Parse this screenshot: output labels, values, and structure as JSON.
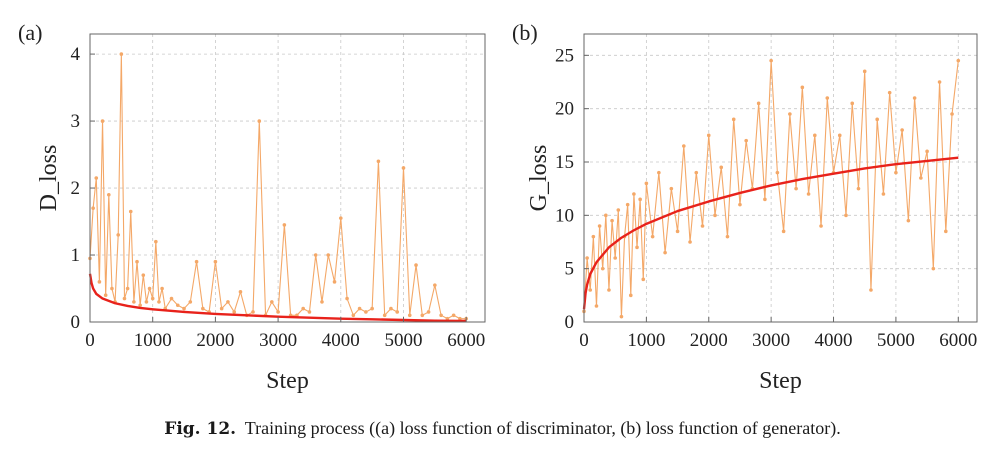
{
  "caption": {
    "label": "Fig. 12.",
    "text": "Training process ((a) loss function of discriminator, (b) loss function of generator)."
  },
  "colors": {
    "raw": "#f4a868",
    "trend": "#e8221b",
    "grid": "#c8c8c8",
    "axis": "#666666"
  },
  "chart_data": [
    {
      "type": "line",
      "panel_label": "(a)",
      "xlabel": "Step",
      "ylabel": "D_loss",
      "xlim": [
        0,
        6300
      ],
      "ylim": [
        0,
        4.3
      ],
      "xticks": [
        0,
        1000,
        2000,
        3000,
        4000,
        5000,
        6000
      ],
      "yticks": [
        0,
        1,
        2,
        3,
        4
      ],
      "grid": true,
      "series": [
        {
          "role": "raw",
          "style": "orange line with dot markers",
          "x": [
            0,
            50,
            100,
            150,
            200,
            250,
            300,
            350,
            400,
            450,
            500,
            550,
            600,
            650,
            700,
            750,
            800,
            850,
            900,
            950,
            1000,
            1050,
            1100,
            1150,
            1200,
            1300,
            1400,
            1500,
            1600,
            1700,
            1800,
            1900,
            2000,
            2100,
            2200,
            2300,
            2400,
            2500,
            2600,
            2700,
            2800,
            2900,
            3000,
            3100,
            3200,
            3300,
            3400,
            3500,
            3600,
            3700,
            3800,
            3900,
            4000,
            4100,
            4200,
            4300,
            4400,
            4500,
            4600,
            4700,
            4800,
            4900,
            5000,
            5100,
            5200,
            5300,
            5400,
            5500,
            5600,
            5700,
            5800,
            5900,
            6000
          ],
          "values": [
            0.95,
            1.7,
            2.15,
            0.6,
            3.0,
            0.4,
            1.9,
            0.5,
            0.3,
            1.3,
            4.0,
            0.35,
            0.5,
            1.65,
            0.3,
            0.9,
            0.25,
            0.7,
            0.3,
            0.5,
            0.35,
            1.2,
            0.3,
            0.5,
            0.2,
            0.35,
            0.25,
            0.2,
            0.3,
            0.9,
            0.2,
            0.15,
            0.9,
            0.2,
            0.3,
            0.15,
            0.45,
            0.1,
            0.15,
            3.0,
            0.1,
            0.3,
            0.15,
            1.45,
            0.1,
            0.1,
            0.2,
            0.15,
            1.0,
            0.3,
            1.0,
            0.6,
            1.55,
            0.35,
            0.1,
            0.2,
            0.15,
            0.2,
            2.4,
            0.1,
            0.2,
            0.15,
            2.3,
            0.1,
            0.85,
            0.1,
            0.15,
            0.55,
            0.1,
            0.05,
            0.1,
            0.05,
            0.05
          ]
        },
        {
          "role": "trend",
          "style": "red smooth curve",
          "x": [
            0,
            25,
            50,
            100,
            200,
            400,
            600,
            800,
            1000,
            1500,
            2000,
            2500,
            3000,
            3500,
            4000,
            4500,
            5000,
            5500,
            6000
          ],
          "values": [
            0.72,
            0.58,
            0.5,
            0.42,
            0.35,
            0.28,
            0.24,
            0.21,
            0.19,
            0.15,
            0.12,
            0.1,
            0.08,
            0.065,
            0.05,
            0.04,
            0.03,
            0.02,
            0.015
          ]
        }
      ]
    },
    {
      "type": "line",
      "panel_label": "(b)",
      "xlabel": "Step",
      "ylabel": "G_loss",
      "xlim": [
        0,
        6300
      ],
      "ylim": [
        0,
        27
      ],
      "xticks": [
        0,
        1000,
        2000,
        3000,
        4000,
        5000,
        6000
      ],
      "yticks": [
        0,
        5,
        10,
        15,
        20,
        25
      ],
      "grid": true,
      "series": [
        {
          "role": "raw",
          "style": "orange line with dot markers",
          "x": [
            0,
            50,
            100,
            150,
            200,
            250,
            300,
            350,
            400,
            450,
            500,
            550,
            600,
            650,
            700,
            750,
            800,
            850,
            900,
            950,
            1000,
            1100,
            1200,
            1300,
            1400,
            1500,
            1600,
            1700,
            1800,
            1900,
            2000,
            2100,
            2200,
            2300,
            2400,
            2500,
            2600,
            2700,
            2800,
            2900,
            3000,
            3100,
            3200,
            3300,
            3400,
            3500,
            3600,
            3700,
            3800,
            3900,
            4000,
            4100,
            4200,
            4300,
            4400,
            4500,
            4600,
            4700,
            4800,
            4900,
            5000,
            5100,
            5200,
            5300,
            5400,
            5500,
            5600,
            5700,
            5800,
            5900,
            6000
          ],
          "values": [
            1.0,
            6.0,
            3.0,
            8.0,
            1.5,
            9.0,
            5.0,
            10.0,
            3.0,
            9.5,
            6.0,
            10.5,
            0.5,
            8.0,
            11.0,
            2.5,
            12.0,
            7.0,
            11.5,
            4.0,
            13.0,
            8.0,
            14.0,
            6.5,
            12.5,
            8.5,
            16.5,
            7.5,
            14.0,
            9.0,
            17.5,
            10.0,
            14.5,
            8.0,
            19.0,
            11.0,
            17.0,
            12.5,
            20.5,
            11.5,
            24.5,
            14.0,
            8.5,
            19.5,
            12.5,
            22.0,
            12.0,
            17.5,
            9.0,
            21.0,
            14.0,
            17.5,
            10.0,
            20.5,
            12.5,
            23.5,
            3.0,
            19.0,
            12.0,
            21.5,
            14.0,
            18.0,
            9.5,
            21.0,
            13.5,
            16.0,
            5.0,
            22.5,
            8.5,
            19.5,
            24.5
          ]
        },
        {
          "role": "trend",
          "style": "red smooth curve",
          "x": [
            0,
            25,
            50,
            100,
            200,
            400,
            600,
            800,
            1000,
            1500,
            2000,
            2500,
            3000,
            3500,
            4000,
            4500,
            5000,
            5500,
            6000
          ],
          "values": [
            1.2,
            2.7,
            3.5,
            4.5,
            5.6,
            7.0,
            7.9,
            8.6,
            9.2,
            10.4,
            11.3,
            12.1,
            12.8,
            13.4,
            13.9,
            14.4,
            14.8,
            15.1,
            15.4
          ]
        }
      ]
    }
  ]
}
